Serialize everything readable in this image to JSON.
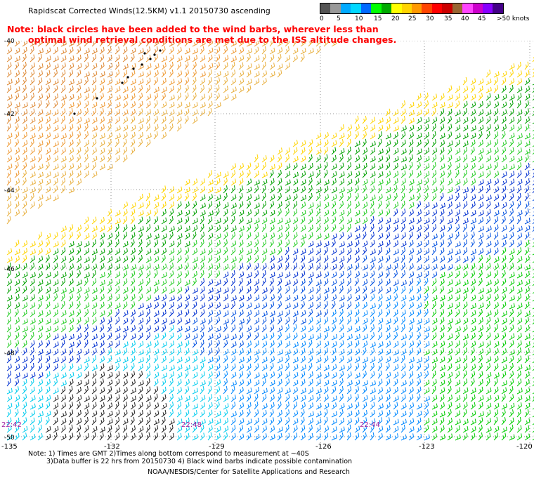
{
  "title": "Rapidscat Corrected Winds(12.5KM) v1.1 20150730 ascending",
  "legend": {
    "colors": [
      "#555555",
      "#999999",
      "#00aaff",
      "#00d8ff",
      "#006aff",
      "#00ff00",
      "#00aa00",
      "#ffff00",
      "#ffd400",
      "#ff9900",
      "#ff4400",
      "#ff0000",
      "#cc0000",
      "#996633",
      "#ff44ff",
      "#cc00cc",
      "#8800ff",
      "#440088"
    ],
    "labels": [
      "0",
      "5",
      "10",
      "15",
      "20",
      "25",
      "30",
      "35",
      "40",
      "45",
      ">50 knots"
    ]
  },
  "note": {
    "line1": "Note: black circles have been added to the wind barbs, wherever less than",
    "line2": "optimal wind retrieval conditions are met due to the ISS altitude changes."
  },
  "lat_labels": [
    "-40",
    "-42",
    "-44",
    "-46",
    "-48",
    "-50"
  ],
  "lon_labels": [
    "-135",
    "-132",
    "-129",
    "-126",
    "-123",
    "-120"
  ],
  "time_labels": [
    "22:42",
    "22:48",
    "22:44"
  ],
  "footer": {
    "line1": "Note: 1) Times are GMT 2)Times along bottom correspond to measurement at ~40S",
    "line2": "3)Data buffer is 22 hrs from 20150730 4) Black wind barbs indicate possible contamination"
  },
  "credit": "NOAA/NESDIS/Center for Satellite Applications and Research"
}
